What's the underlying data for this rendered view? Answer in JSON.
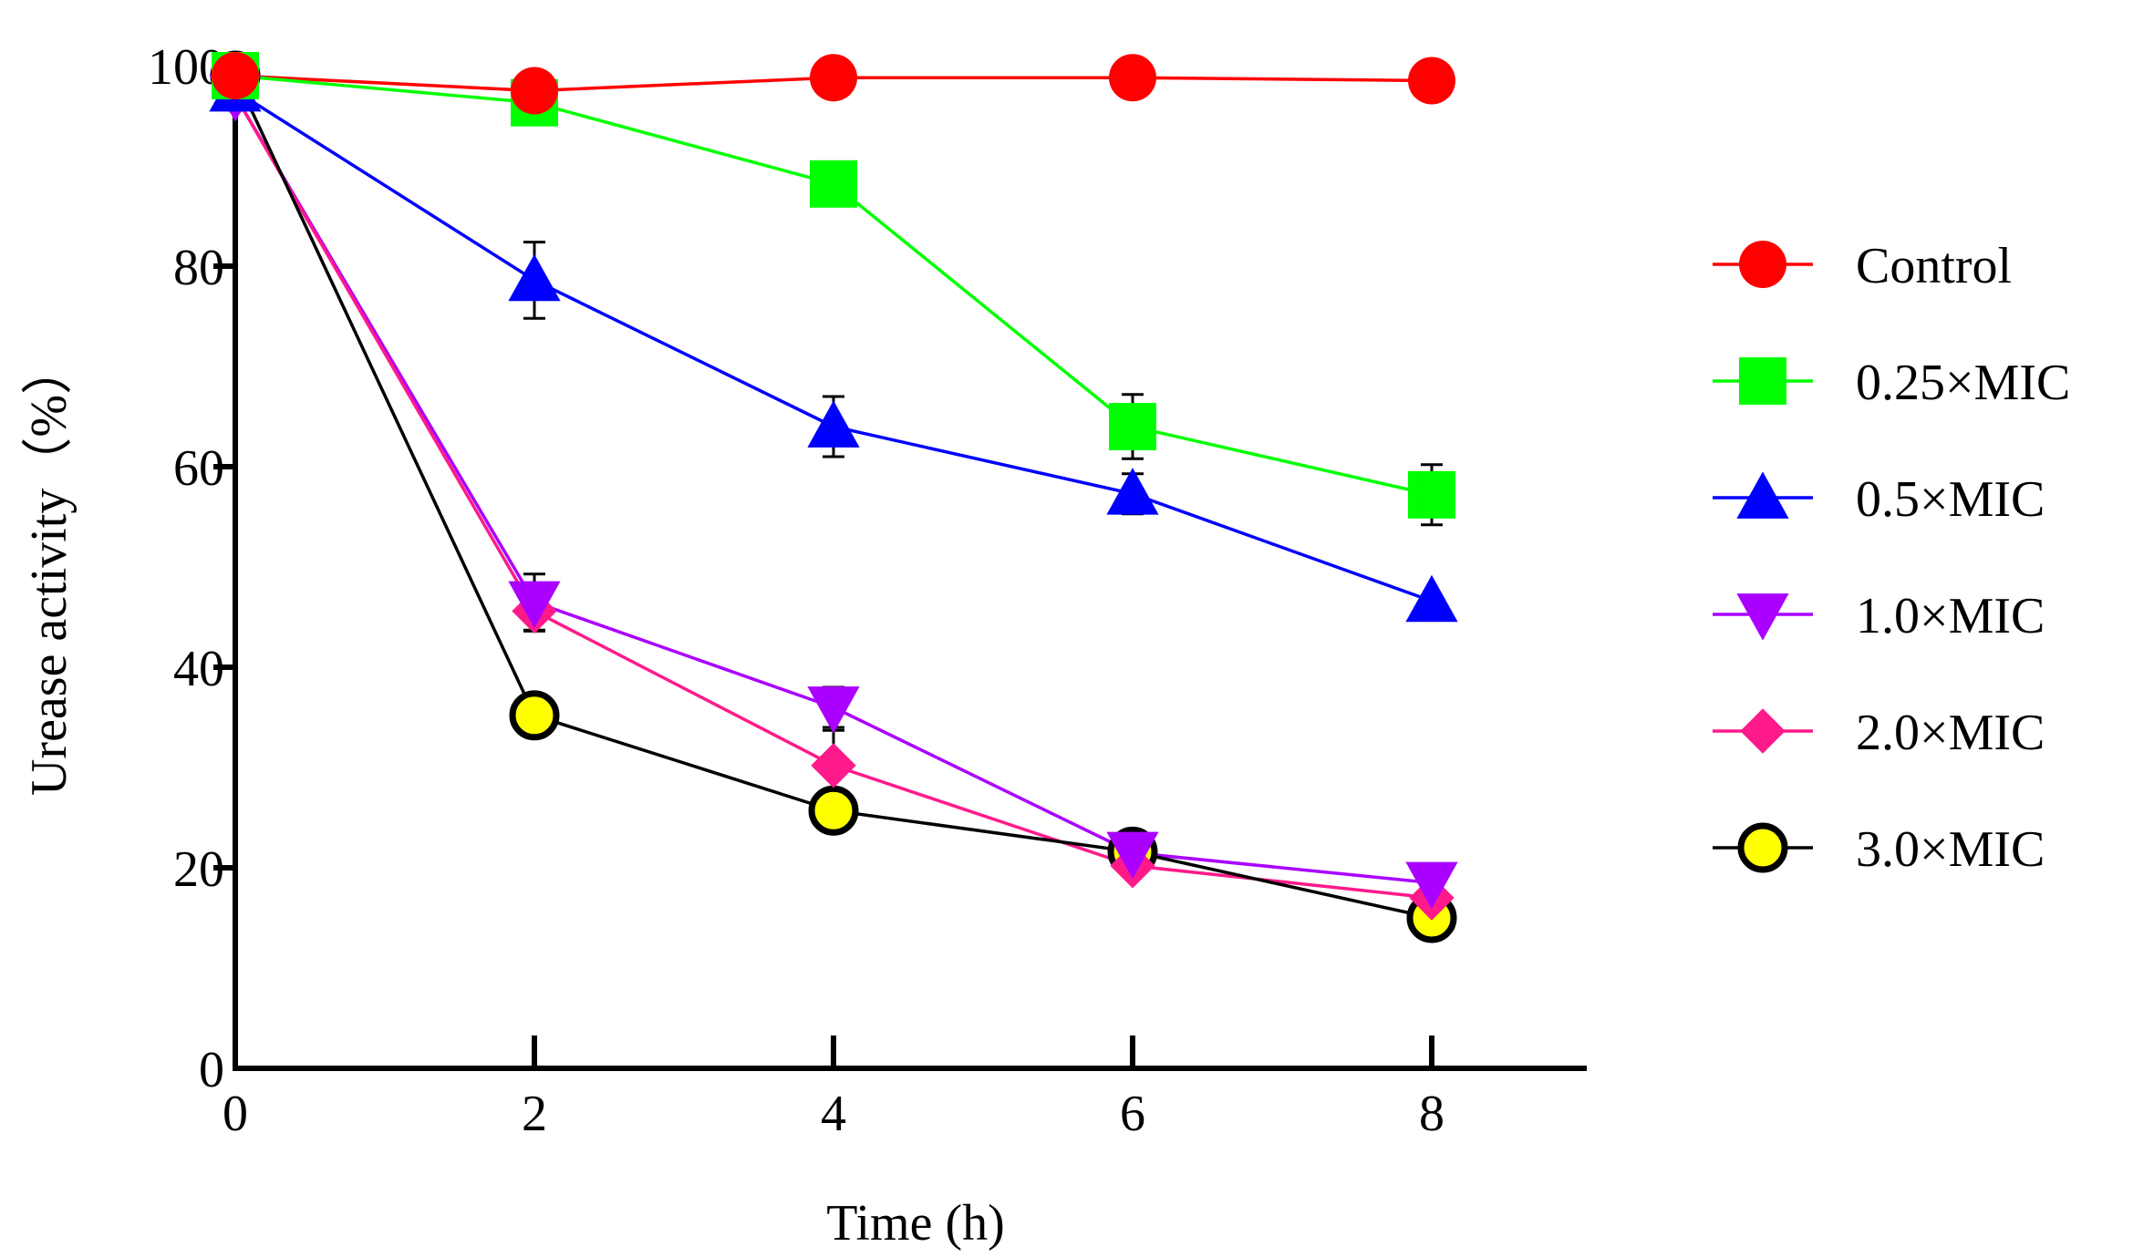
{
  "chart_data": {
    "type": "line",
    "title": "",
    "xlabel": "Time (h)",
    "ylabel": "Urease activity（%）",
    "x": [
      0,
      2,
      4,
      6,
      8
    ],
    "xlim": [
      0,
      9
    ],
    "ylim": [
      0,
      100
    ],
    "x_ticks": [
      "0",
      "2",
      "4",
      "6",
      "8"
    ],
    "y_ticks": [
      "0",
      "20",
      "40",
      "60",
      "80",
      "100"
    ],
    "grid": false,
    "legend_position": "right",
    "series": [
      {
        "name": "Control",
        "color": "#ff0000",
        "marker": "circle",
        "values": [
          99,
          97.5,
          98.8,
          98.8,
          98.5
        ],
        "errors": [
          0,
          0,
          0,
          0,
          0
        ]
      },
      {
        "name": "0.25×MIC",
        "color": "#00ff00",
        "marker": "square",
        "values": [
          99,
          96.3,
          88.2,
          64,
          57.2
        ],
        "errors": [
          0,
          0,
          0,
          3.2,
          3
        ]
      },
      {
        "name": "0.5×MIC",
        "color": "#0000ff",
        "marker": "triangle-up",
        "values": [
          97.5,
          78.6,
          64,
          57.3,
          46.6
        ],
        "errors": [
          0,
          3.8,
          3,
          2,
          0
        ]
      },
      {
        "name": "1.0×MIC",
        "color": "#aa00ff",
        "marker": "triangle-down",
        "values": [
          97,
          46.5,
          36,
          21.5,
          18.5
        ],
        "errors": [
          0,
          2.8,
          2,
          1.5,
          0
        ]
      },
      {
        "name": "2.0×MIC",
        "color": "#ff1a8c",
        "marker": "diamond",
        "values": [
          97,
          45.6,
          30.2,
          20.2,
          17
        ],
        "errors": [
          0,
          2,
          3.5,
          1,
          0
        ]
      },
      {
        "name": "3.0×MIC",
        "color": "#000000",
        "fill": "#ffff00",
        "marker": "circle-outline",
        "values": [
          99,
          35.2,
          25.7,
          21.6,
          15
        ],
        "errors": [
          0,
          0,
          0,
          0,
          0
        ]
      }
    ]
  }
}
